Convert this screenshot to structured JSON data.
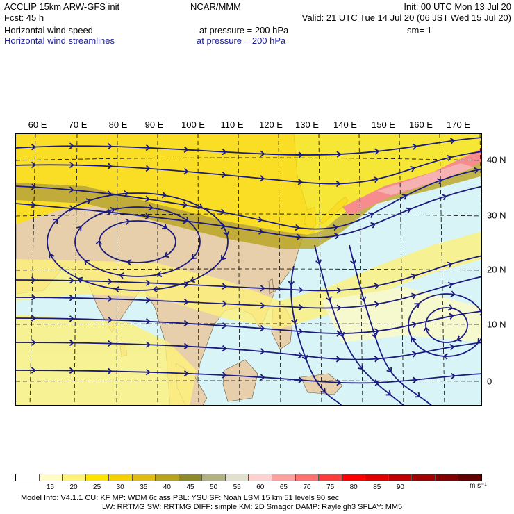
{
  "header": {
    "model": "ACCLIP 15km ARW-GFS init",
    "forecast": "Fcst:   45 h",
    "field1": "Horizontal wind speed",
    "field2": "Horizontal wind streamlines",
    "center": "NCAR/MMM",
    "init": "Init: 00 UTC Mon 13 Jul 20",
    "valid": "Valid: 21 UTC Tue 14 Jul 20 (06 JST Wed 15 Jul 20)",
    "pressure1": "at pressure =  200 hPa",
    "pressure2": "at pressure =  200 hPa",
    "smooth": "sm= 1"
  },
  "map": {
    "lon_labels": [
      "60 E",
      "70 E",
      "80 E",
      "90 E",
      "100 E",
      "110 E",
      "120 E",
      "130 E",
      "140 E",
      "150 E",
      "160 E",
      "170 E"
    ],
    "lat_labels": [
      "40 N",
      "30 N",
      "20 N",
      "10 N",
      "0"
    ],
    "colors": {
      "land": "#e6cfaa",
      "ocean": "#d9f4f6",
      "streamline": "#1a1a80"
    }
  },
  "colorbar": {
    "colors": [
      "#ffffff",
      "#fffbc4",
      "#fff279",
      "#ffe300",
      "#f4d000",
      "#e0bc10",
      "#b9a31a",
      "#8e8a2a",
      "#b0b080",
      "#e0e0cc",
      "#ffd0d0",
      "#ffa0a0",
      "#ff7070",
      "#ff3c3c",
      "#ff0000",
      "#e00000",
      "#c00000",
      "#a00000",
      "#800000",
      "#600000"
    ],
    "labels": [
      "15",
      "20",
      "25",
      "30",
      "35",
      "40",
      "45",
      "50",
      "55",
      "60",
      "65",
      "70",
      "75",
      "80",
      "85",
      "90"
    ],
    "units": "m s⁻¹"
  },
  "footer": {
    "line1": "Model Info: V4.1.1     CU: KF      MP: WDM 6class  PBL: YSU       SF: Noah LSM      15 km    51 levels    90 sec",
    "line2": "LW: RRTMG     SW: RRTMG   DIFF: simple KM: 2D Smagor DAMP: Rayleigh3  SFLAY: MM5"
  }
}
